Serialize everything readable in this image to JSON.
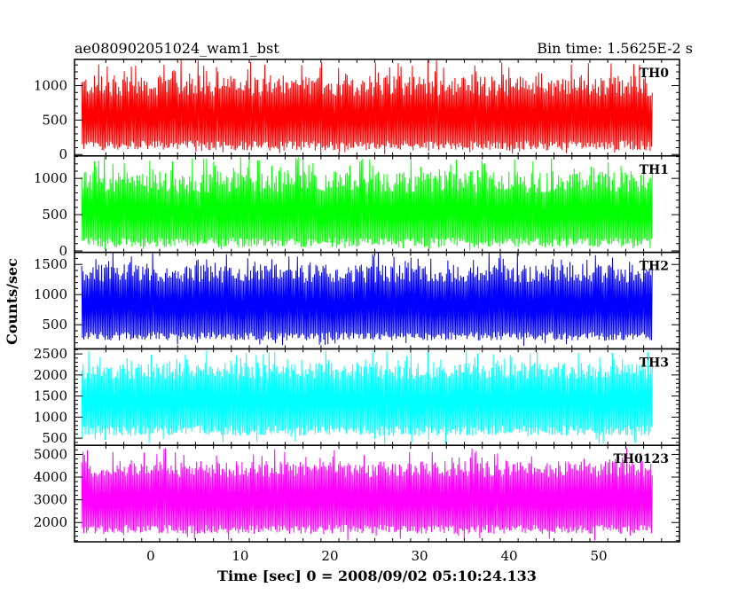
{
  "header": {
    "left_title": "ae080902051024_wam1_bst",
    "right_title": "Bin time: 1.5625E-2 s"
  },
  "chart_data": {
    "type": "line",
    "xlabel": "Time [sec] 0 = 2008/09/02 05:10:24.133",
    "ylabel": "Counts/sec",
    "xlim": [
      -8.5,
      59
    ],
    "x_data_range": [
      -7.7,
      56
    ],
    "x_ticks": [
      0,
      10,
      20,
      30,
      40,
      50
    ],
    "panels": [
      {
        "name": "TH0",
        "color": "#ff0000",
        "ylim": [
          -20,
          1380
        ],
        "y_ticks": [
          0,
          500,
          1000
        ],
        "band_low": [
          60,
          200
        ],
        "band_high": [
          850,
          1150
        ],
        "spike_max": 1380,
        "dip_min": 0
      },
      {
        "name": "TH1",
        "color": "#00ff00",
        "ylim": [
          -20,
          1310
        ],
        "y_ticks": [
          0,
          500,
          1000
        ],
        "band_low": [
          50,
          180
        ],
        "band_high": [
          800,
          1100
        ],
        "spike_max": 1300,
        "dip_min": 0
      },
      {
        "name": "TH2",
        "color": "#0000ff",
        "ylim": [
          100,
          1700
        ],
        "y_ticks": [
          500,
          1000,
          1500
        ],
        "band_low": [
          240,
          380
        ],
        "band_high": [
          1200,
          1500
        ],
        "spike_max": 1700,
        "dip_min": 150
      },
      {
        "name": "TH3",
        "color": "#00ffff",
        "ylim": [
          330,
          2620
        ],
        "y_ticks": [
          500,
          1000,
          1500,
          2000,
          2500
        ],
        "band_low": [
          560,
          800
        ],
        "band_high": [
          1900,
          2300
        ],
        "spike_max": 2600,
        "dip_min": 350
      },
      {
        "name": "TH0123",
        "color": "#ff00ff",
        "ylim": [
          1150,
          5400
        ],
        "y_ticks": [
          2000,
          3000,
          4000,
          5000
        ],
        "band_low": [
          1500,
          1900
        ],
        "band_high": [
          4000,
          4700
        ],
        "spike_max": 5300,
        "dip_min": 1200
      }
    ]
  }
}
